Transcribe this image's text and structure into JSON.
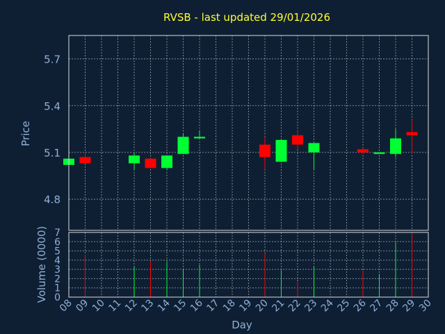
{
  "chart_data": {
    "type": "candlestick",
    "title": "RVSB - last updated 29/01/2026",
    "xlabel": "Day",
    "ylabel": "Price",
    "volume_label": "Volume (0000)",
    "price_ylim": [
      4.6,
      5.85
    ],
    "price_ticks": [
      "5.7",
      "5.4",
      "5.1",
      "4.8"
    ],
    "volume_ylim": [
      0,
      7
    ],
    "volume_ticks": [
      "0",
      "1",
      "2",
      "3",
      "4",
      "5",
      "6",
      "7"
    ],
    "x_ticks": [
      "08",
      "09",
      "10",
      "11",
      "12",
      "13",
      "14",
      "15",
      "16",
      "17",
      "18",
      "19",
      "20",
      "21",
      "22",
      "23",
      "24",
      "25",
      "26",
      "27",
      "28",
      "29",
      "30"
    ],
    "grid": true,
    "up_color": "#00ff33",
    "down_color": "#ff0000",
    "candles": [
      {
        "day": "08",
        "open": 5.02,
        "close": 5.06,
        "high": 5.06,
        "low": 5.02,
        "volume": 0
      },
      {
        "day": "09",
        "open": 5.07,
        "close": 5.03,
        "high": 5.1,
        "low": 5.03,
        "volume": 4.6
      },
      {
        "day": "12",
        "open": 5.03,
        "close": 5.08,
        "high": 5.1,
        "low": 4.99,
        "volume": 3.3
      },
      {
        "day": "13",
        "open": 5.06,
        "close": 5.0,
        "high": 5.06,
        "low": 5.0,
        "volume": 3.9
      },
      {
        "day": "14",
        "open": 5.0,
        "close": 5.08,
        "high": 5.08,
        "low": 4.99,
        "volume": 3.8
      },
      {
        "day": "15",
        "open": 5.09,
        "close": 5.2,
        "high": 5.22,
        "low": 5.09,
        "volume": 3.0
      },
      {
        "day": "16",
        "open": 5.19,
        "close": 5.2,
        "high": 5.24,
        "low": 5.19,
        "volume": 3.5
      },
      {
        "day": "20",
        "open": 5.15,
        "close": 5.07,
        "high": 5.2,
        "low": 4.99,
        "volume": 4.8
      },
      {
        "day": "21",
        "open": 5.04,
        "close": 5.18,
        "high": 5.18,
        "low": 5.04,
        "volume": 2.9
      },
      {
        "day": "22",
        "open": 5.21,
        "close": 5.15,
        "high": 5.24,
        "low": 5.12,
        "volume": 1.7
      },
      {
        "day": "23",
        "open": 5.1,
        "close": 5.16,
        "high": 5.16,
        "low": 4.99,
        "volume": 3.3
      },
      {
        "day": "26",
        "open": 5.12,
        "close": 5.1,
        "high": 5.13,
        "low": 5.09,
        "volume": 2.9
      },
      {
        "day": "27",
        "open": 5.09,
        "close": 5.1,
        "high": 5.1,
        "low": 5.09,
        "volume": 2.5
      },
      {
        "day": "28",
        "open": 5.09,
        "close": 5.19,
        "high": 5.25,
        "low": 5.07,
        "volume": 5.9
      },
      {
        "day": "29",
        "open": 5.23,
        "close": 5.21,
        "high": 5.31,
        "low": 5.09,
        "volume": 7.0
      }
    ]
  }
}
